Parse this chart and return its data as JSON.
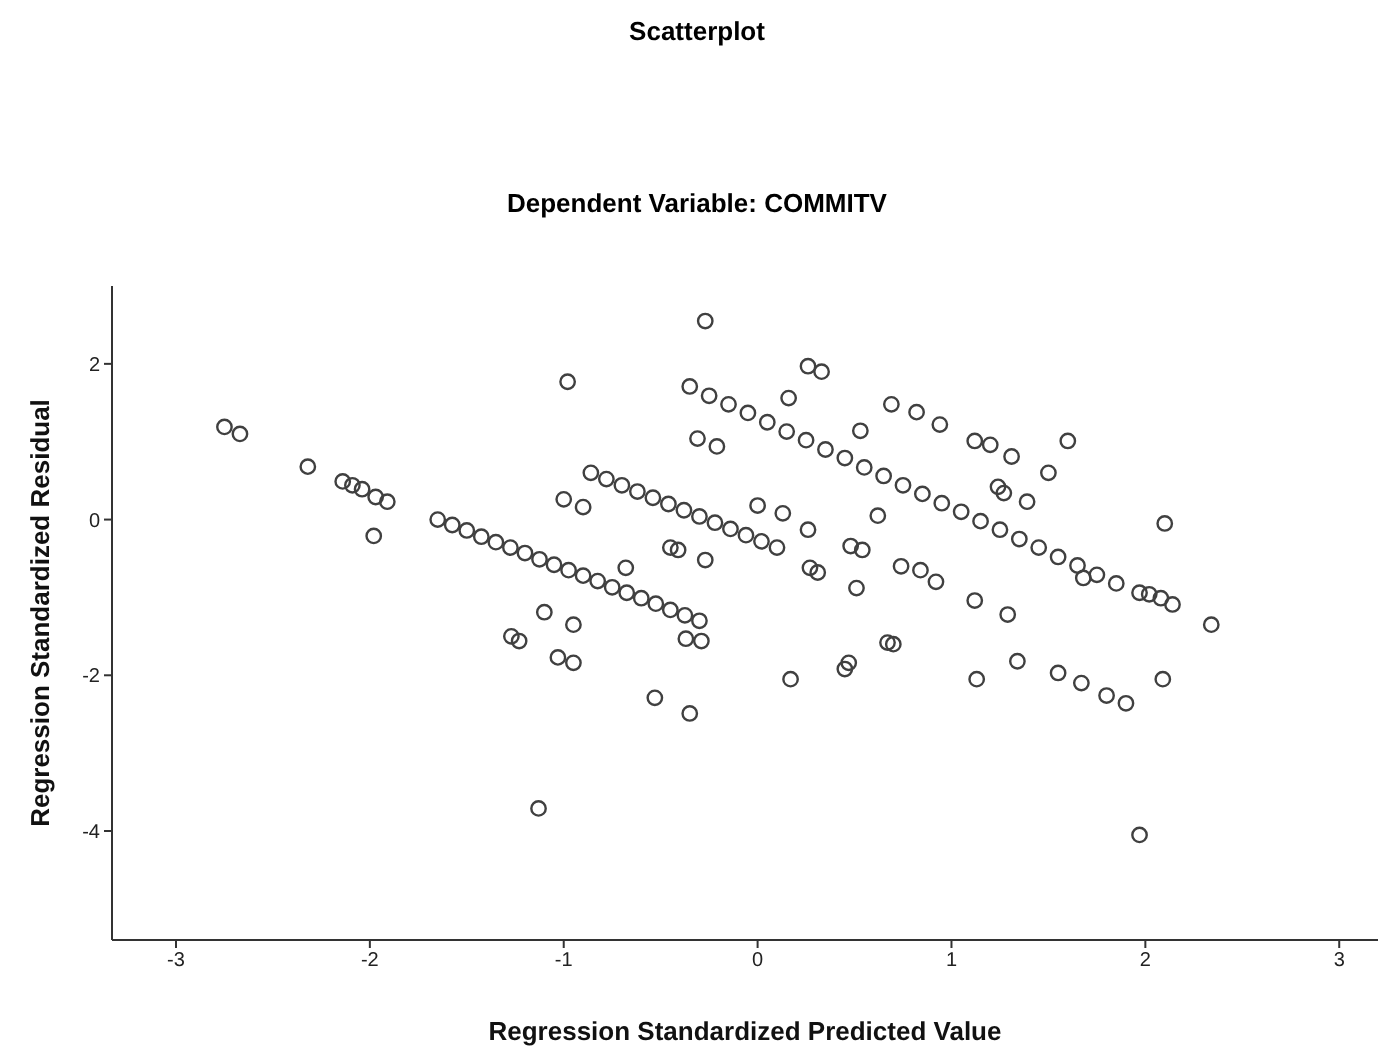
{
  "chart_data": {
    "type": "scatter",
    "title": "Scatterplot",
    "subtitle": "Dependent Variable: COMMITV",
    "xlabel": "Regression Standardized Predicted Value",
    "ylabel": "Regression Standardized Residual",
    "xlim": [
      -3.33,
      3.2
    ],
    "ylim": [
      -5.4,
      3.0
    ],
    "xticks": [
      -3,
      -2,
      -1,
      0,
      1,
      2,
      3
    ],
    "yticks": [
      -4,
      -2,
      0,
      2
    ],
    "grid": false,
    "legend": false,
    "marker": "circle",
    "series": [
      {
        "color": "#404040",
        "x": [
          -1.65,
          -1.575,
          -1.5,
          -1.425,
          -1.35,
          -1.275,
          -1.2,
          -1.125,
          -1.05,
          -0.975,
          -0.9,
          -0.825,
          -0.75,
          -0.675,
          -0.6,
          -0.525,
          -0.45,
          -0.375,
          -0.3,
          -0.86,
          -0.78,
          -0.7,
          -0.62,
          -0.54,
          -0.46,
          -0.38,
          -0.3,
          -0.22,
          -0.14,
          -0.06,
          0.02,
          0.1,
          -0.35,
          -0.25,
          -0.15,
          -0.05,
          0.05,
          0.15,
          0.25,
          0.35,
          0.45,
          0.55,
          0.65,
          0.75,
          0.85,
          0.95,
          1.05,
          1.15,
          1.25,
          1.35,
          1.45,
          1.55,
          1.65,
          1.75,
          1.85,
          -2.75,
          -2.67,
          -2.32,
          -2.14,
          -2.09,
          -2.04,
          -1.97,
          -1.91,
          -1.98,
          -0.98,
          -1.0,
          -0.9,
          -0.68,
          -1.1,
          -1.27,
          -1.23,
          -0.95,
          -1.03,
          -0.95,
          -0.37,
          -0.29,
          -0.27,
          -0.31,
          -0.21,
          -0.45,
          -0.41,
          -0.27,
          0.26,
          0.33,
          0.16,
          0.69,
          0.82,
          0.94,
          0.53,
          1.12,
          1.2,
          1.31,
          1.6,
          1.5,
          1.24,
          1.27,
          1.39,
          0.0,
          0.13,
          0.26,
          0.62,
          0.48,
          0.54,
          0.27,
          0.31,
          0.74,
          0.84,
          0.92,
          0.51,
          1.12,
          1.29,
          2.34,
          2.1,
          1.97,
          2.02,
          2.08,
          2.14,
          0.67,
          0.7,
          0.45,
          0.17,
          -0.53,
          -0.35,
          1.13,
          1.55,
          1.67,
          1.8,
          1.9,
          2.09,
          -1.13,
          1.97,
          1.34,
          0.47,
          1.68
        ],
        "values": [
          0,
          -0.07,
          -0.14,
          -0.22,
          -0.29,
          -0.36,
          -0.43,
          -0.51,
          -0.58,
          -0.65,
          -0.72,
          -0.79,
          -0.87,
          -0.94,
          -1.01,
          -1.08,
          -1.16,
          -1.23,
          -1.3,
          0.6,
          0.52,
          0.44,
          0.36,
          0.28,
          0.2,
          0.12,
          0.04,
          -0.04,
          -0.12,
          -0.2,
          -0.28,
          -0.36,
          1.71,
          1.59,
          1.48,
          1.37,
          1.25,
          1.13,
          1.02,
          0.9,
          0.79,
          0.67,
          0.56,
          0.44,
          0.33,
          0.21,
          0.1,
          -0.02,
          -0.13,
          -0.25,
          -0.36,
          -0.48,
          -0.59,
          -0.71,
          -0.82,
          1.19,
          1.1,
          0.68,
          0.49,
          0.44,
          0.39,
          0.29,
          0.23,
          -0.21,
          1.77,
          0.26,
          0.16,
          -0.62,
          -1.19,
          -1.5,
          -1.56,
          -1.35,
          -1.77,
          -1.84,
          -1.53,
          -1.56,
          2.55,
          1.04,
          0.94,
          -0.36,
          -0.39,
          -0.52,
          1.97,
          1.9,
          1.56,
          1.48,
          1.38,
          1.22,
          1.14,
          1.01,
          0.96,
          0.81,
          1.01,
          0.6,
          0.42,
          0.34,
          0.23,
          0.18,
          0.08,
          -0.13,
          0.05,
          -0.34,
          -0.39,
          -0.62,
          -0.68,
          -0.6,
          -0.65,
          -0.8,
          -0.88,
          -1.04,
          -1.22,
          -1.35,
          -0.05,
          -0.94,
          -0.96,
          -1.01,
          -1.09,
          -1.58,
          -1.6,
          -1.92,
          -2.05,
          -2.29,
          -2.49,
          -2.05,
          -1.97,
          -2.1,
          -2.26,
          -2.36,
          -2.05,
          -3.71,
          -4.05,
          -1.82,
          -1.84,
          -0.75
        ]
      }
    ]
  }
}
